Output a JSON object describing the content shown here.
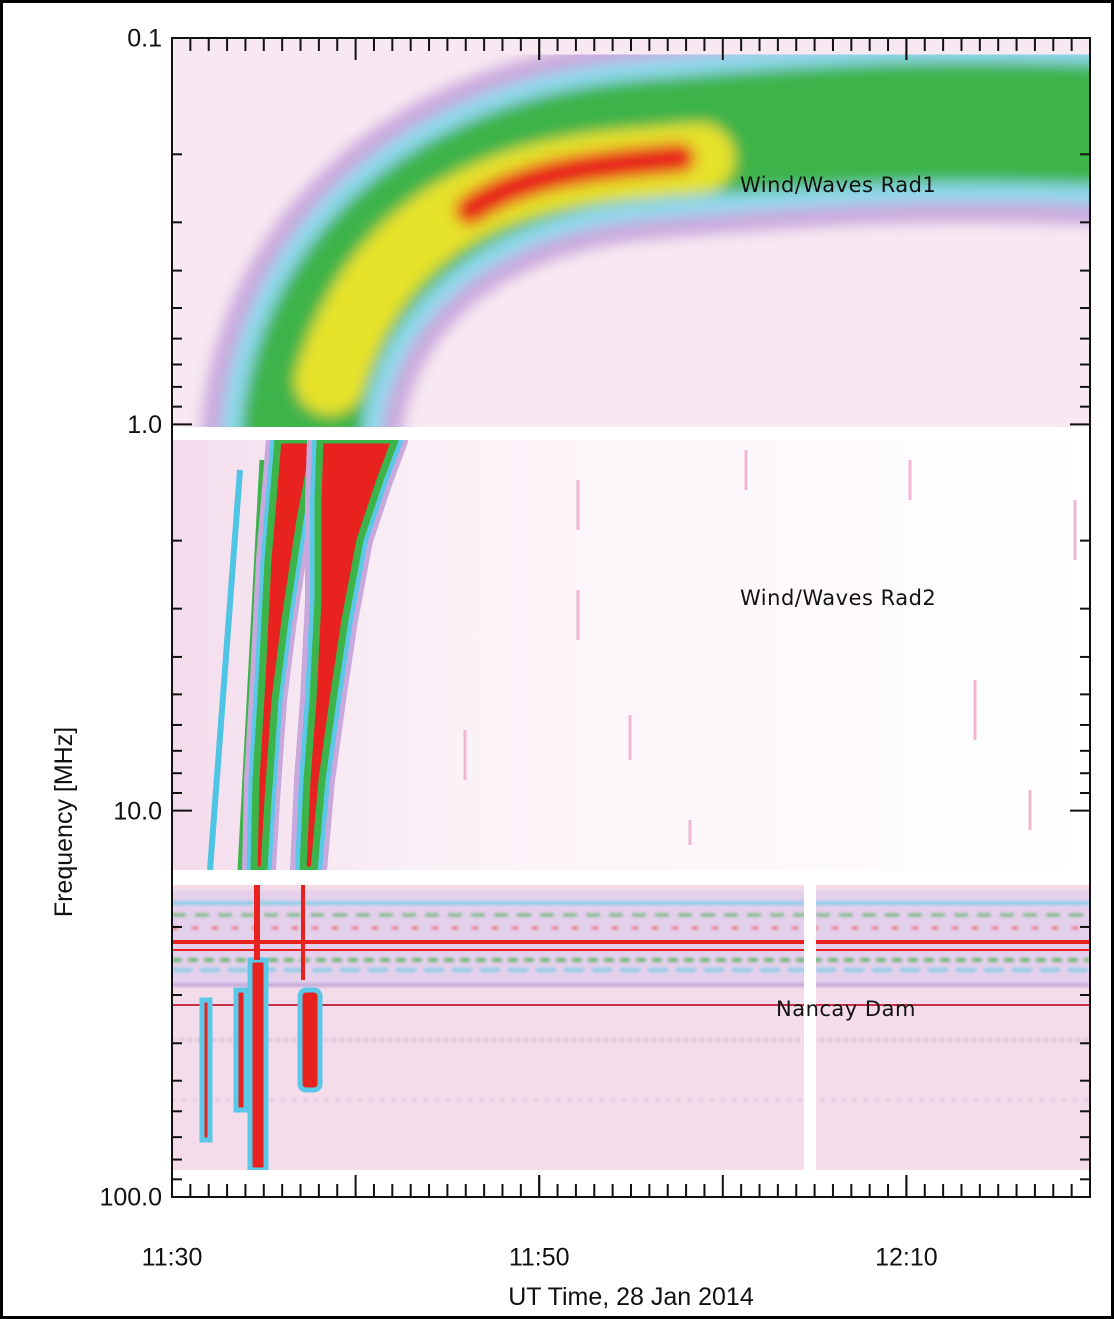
{
  "chart_data": {
    "type": "spectrogram",
    "xlabel": "UT Time, 28 Jan 2014",
    "ylabel": "Frequency [MHz]",
    "xlim": [
      "11:30",
      "12:20"
    ],
    "xticks": [
      "11:30",
      "11:50",
      "12:10"
    ],
    "ylim": [
      0.1,
      100
    ],
    "yticks": [
      0.1,
      {
        "value": 1,
        "label": "1.0"
      },
      {
        "value": 10,
        "label": "10.0"
      },
      {
        "value": 100,
        "label": "100.0"
      }
    ],
    "log_y": true,
    "y_inverted": true,
    "annotations": [
      "Wind/Waves Rad1",
      "Wind/Waves Rad2",
      "Nancay Dam"
    ]
  }
}
